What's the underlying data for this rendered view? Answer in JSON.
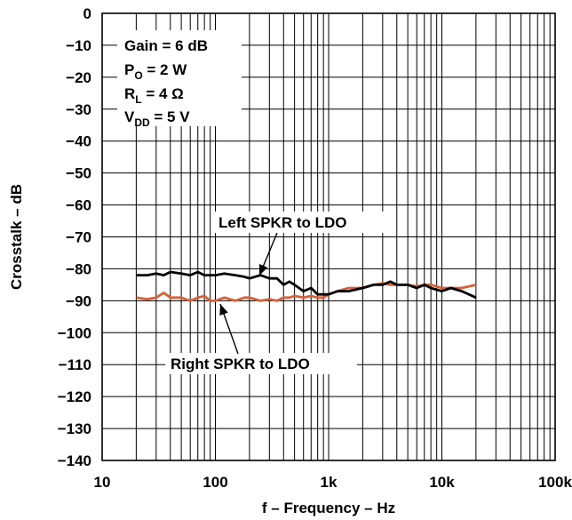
{
  "chart_data": {
    "type": "line",
    "xscale": "log",
    "xlim": [
      10,
      100000
    ],
    "ylim": [
      -140,
      0
    ],
    "grid": true,
    "xlabel": "f – Frequency – Hz",
    "ylabel": "Crosstalk – dB",
    "x_ticks": [
      10,
      100,
      1000,
      10000,
      100000
    ],
    "x_tick_labels": [
      "10",
      "100",
      "1k",
      "10k",
      "100k"
    ],
    "y_ticks": [
      0,
      -10,
      -20,
      -30,
      -40,
      -50,
      -60,
      -70,
      -80,
      -90,
      -100,
      -110,
      -120,
      -130,
      -140
    ],
    "y_tick_labels": [
      "0",
      "−10",
      "−20",
      "−30",
      "−40",
      "−50",
      "−60",
      "−70",
      "−80",
      "−90",
      "−100",
      "−110",
      "−120",
      "−130",
      "−140"
    ],
    "conditions": [
      {
        "main": "Gain = 6 dB",
        "base": "",
        "sub": "",
        "rest": ""
      },
      {
        "main": "",
        "base": "P",
        "sub": "O",
        "rest": " = 2 W"
      },
      {
        "main": "",
        "base": "R",
        "sub": "L",
        "rest": " = 4 Ω"
      },
      {
        "main": "",
        "base": "V",
        "sub": "DD",
        "rest": " = 5 V"
      }
    ],
    "series": [
      {
        "name": "Left SPKR to LDO",
        "color": "#000000",
        "x": [
          20,
          25,
          30,
          35,
          40,
          50,
          60,
          70,
          80,
          90,
          100,
          120,
          150,
          180,
          200,
          250,
          300,
          350,
          400,
          450,
          500,
          600,
          700,
          800,
          900,
          1000,
          1200,
          1500,
          2000,
          2500,
          3000,
          3500,
          4000,
          5000,
          6000,
          7000,
          8000,
          10000,
          12000,
          15000,
          20000
        ],
        "y": [
          -82,
          -82,
          -81.5,
          -82,
          -81,
          -81.5,
          -82,
          -81,
          -82,
          -82,
          -82,
          -81.5,
          -82,
          -82.5,
          -83,
          -82,
          -83,
          -83,
          -85,
          -84,
          -85,
          -87,
          -86,
          -88,
          -88,
          -88,
          -87,
          -87,
          -86,
          -85,
          -85,
          -84,
          -85,
          -85,
          -86,
          -85,
          -86,
          -87,
          -86,
          -87,
          -89
        ]
      },
      {
        "name": "Right SPKR to LDO",
        "color": "#d4623a",
        "x": [
          20,
          25,
          30,
          35,
          40,
          50,
          60,
          70,
          80,
          90,
          100,
          120,
          150,
          180,
          200,
          250,
          300,
          350,
          400,
          450,
          500,
          600,
          700,
          800,
          900,
          1000,
          1200,
          1500,
          2000,
          2500,
          3000,
          3500,
          4000,
          5000,
          6000,
          7000,
          8000,
          10000,
          12000,
          15000,
          20000
        ],
        "y": [
          -89,
          -89.5,
          -89,
          -87.5,
          -89,
          -89,
          -90,
          -89,
          -88.5,
          -90,
          -90,
          -89,
          -90,
          -89,
          -89,
          -90,
          -89.5,
          -90,
          -89,
          -89,
          -88.5,
          -89,
          -88.5,
          -89,
          -89,
          -88,
          -87,
          -86,
          -86,
          -85,
          -84.5,
          -85,
          -85,
          -85,
          -85.5,
          -85,
          -85,
          -86,
          -86,
          -86,
          -85
        ]
      }
    ],
    "annotations": [
      "Left SPKR to LDO",
      "Right SPKR to LDO"
    ]
  }
}
